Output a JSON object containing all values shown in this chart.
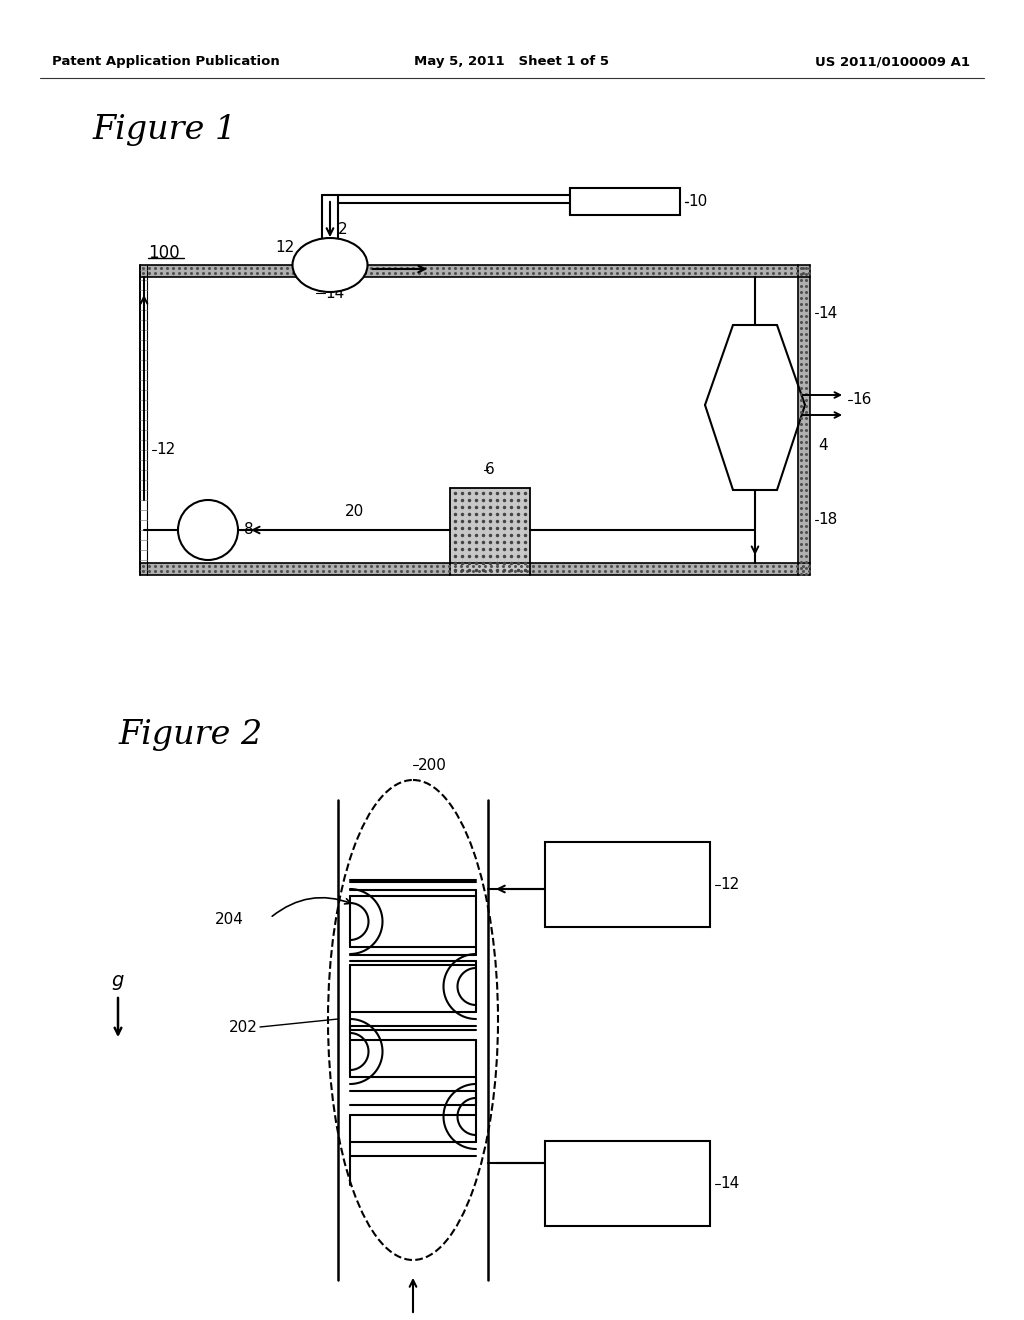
{
  "bg_color": "#ffffff",
  "header_left": "Patent Application Publication",
  "header_mid": "May 5, 2011   Sheet 1 of 5",
  "header_right": "US 2011/0100009 A1",
  "fig1_title": "Figure 1",
  "fig2_title": "Figure 2"
}
